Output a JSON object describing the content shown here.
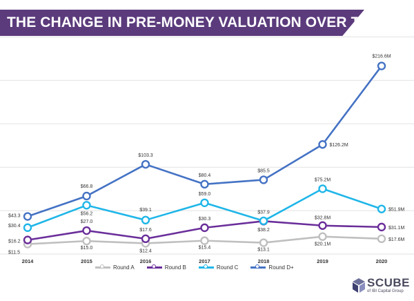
{
  "header": {
    "title": "THE CHANGE IN PRE-MONEY VALUATION OVER TIME"
  },
  "logo": {
    "name": "SCUBE",
    "subtitle": "of IBI Capital Group",
    "icon": "cube-logo-icon"
  },
  "colors": {
    "banner": "#5b3b7c",
    "round_a": "#bfbfbf",
    "round_b": "#6a2e9a",
    "round_c": "#1fb6e8",
    "round_d": "#4472c4",
    "grid": "#e2e2e2"
  },
  "chart_data": {
    "type": "line",
    "title": "THE CHANGE IN PRE-MONEY VALUATION OVER TIME",
    "x": [
      "2014",
      "2015",
      "2016",
      "2017",
      "2018",
      "2019",
      "2020"
    ],
    "ylim": [
      0,
      250
    ],
    "grid": true,
    "legend_position": "bottom",
    "series": [
      {
        "name": "Round A",
        "color": "#bfbfbf",
        "values": [
          11.5,
          15.0,
          12.4,
          15.4,
          13.1,
          20.1,
          17.6
        ],
        "labels": [
          "$11.5",
          "$15.0",
          "$12.4",
          "$15.4",
          "$13.1",
          "$20.1M",
          "$17.6M"
        ]
      },
      {
        "name": "Round B",
        "color": "#6a2e9a",
        "values": [
          16.2,
          27.0,
          17.6,
          30.3,
          37.9,
          32.8,
          31.1
        ],
        "labels": [
          "$16.2",
          "$27.0",
          "$17.6",
          "$30.3",
          "$37.9",
          "$32.8M",
          "$31.1M"
        ]
      },
      {
        "name": "Round C",
        "color": "#1fb6e8",
        "values": [
          30.4,
          56.2,
          39.1,
          59.0,
          38.2,
          75.2,
          51.9
        ],
        "labels": [
          "$30.4",
          "$56.2",
          "$39.1",
          "$59.0",
          "$38.2",
          "$75.2M",
          "$51.9M"
        ]
      },
      {
        "name": "Round D+",
        "color": "#4472c4",
        "values": [
          43.3,
          66.8,
          103.3,
          80.4,
          85.5,
          126.2,
          216.6
        ],
        "labels": [
          "$43.3",
          "$66.8",
          "$103.3",
          "$80.4",
          "$85.5",
          "$126.2M",
          "$216.6M"
        ]
      }
    ]
  }
}
